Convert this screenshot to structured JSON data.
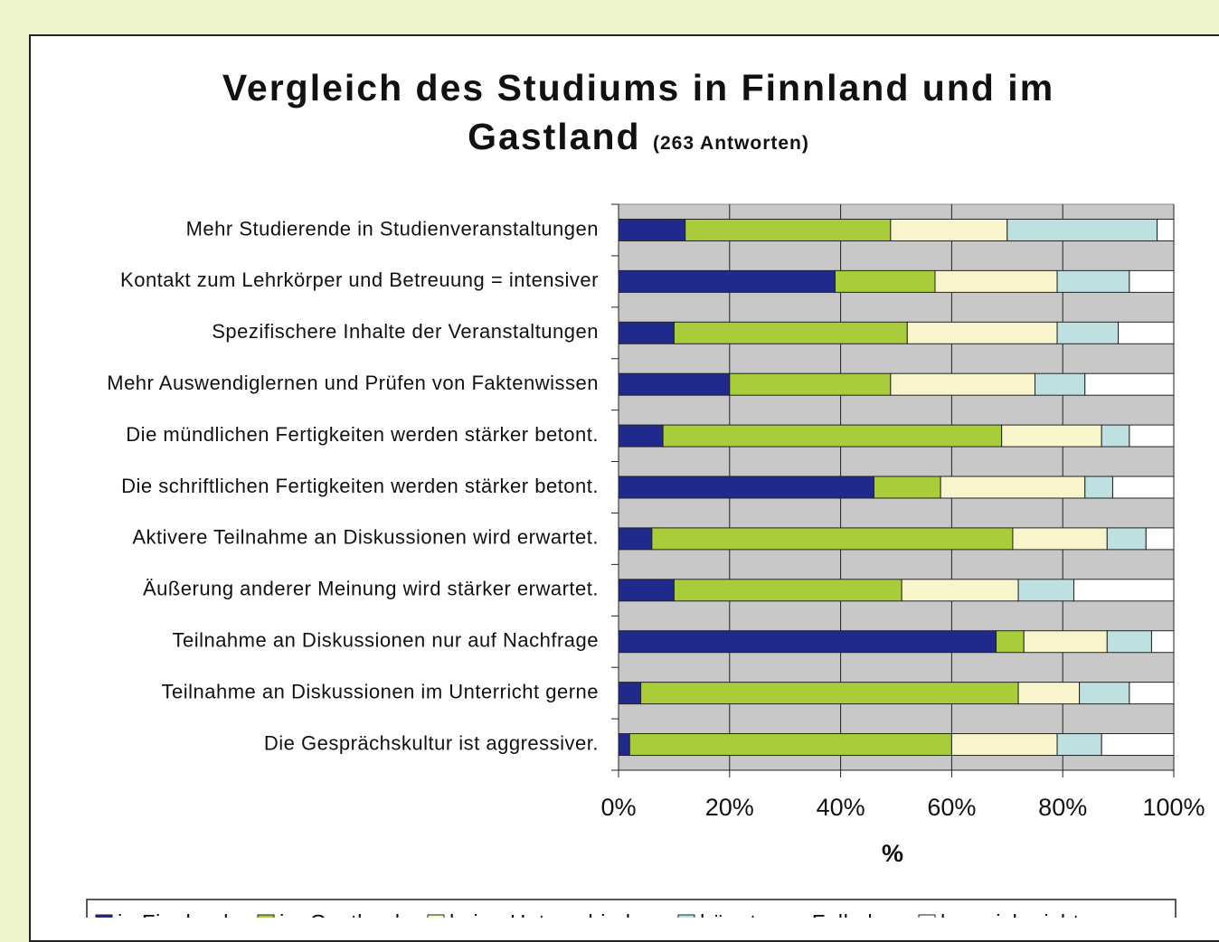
{
  "chart_data": {
    "type": "stacked-bar-horizontal",
    "title": "Vergleich des Studiums in Finnland und im Gastland",
    "subtitle": "(263 Antworten)",
    "x_label": "%",
    "categories": [
      "Mehr Studierende in Studienveranstaltungen",
      "Kontakt zum Lehrkörper und Betreuung = intensiver",
      "Spezifischere Inhalte der Veranstaltungen",
      "Mehr Auswendiglernen und Prüfen von Faktenwissen",
      "Die mündlichen Fertigkeiten werden stärker betont.",
      "Die schriftlichen Fertigkeiten werden stärker betont.",
      "Aktivere Teilnahme an Diskussionen wird erwartet.",
      "Äußerung anderer Meinung wird stärker erwartet.",
      "Teilnahme an Diskussionen nur auf Nachfrage",
      "Teilnahme an Diskussionen im Unterricht gerne",
      "Die Gesprächskultur ist aggressiver."
    ],
    "series": [
      {
        "name": "in Finnland",
        "color": "#1f2a8c",
        "values": [
          12,
          39,
          10,
          20,
          8,
          46,
          6,
          10,
          68,
          4,
          2
        ]
      },
      {
        "name": "im Gastland",
        "color": "#a8cc3a",
        "values": [
          37,
          18,
          42,
          29,
          61,
          12,
          65,
          41,
          5,
          68,
          58
        ]
      },
      {
        "name": "keine Unterschiede",
        "color": "#f8f4cc",
        "values": [
          21,
          22,
          27,
          26,
          18,
          26,
          17,
          21,
          15,
          11,
          19
        ]
      },
      {
        "name": "hängt vom Fall ab",
        "color": "#bfe0e0",
        "values": [
          27,
          13,
          11,
          9,
          5,
          5,
          7,
          10,
          8,
          9,
          8
        ]
      },
      {
        "name": "kann ich nicht sagen",
        "color": "#ffffff",
        "values": [
          3,
          8,
          10,
          16,
          8,
          11,
          5,
          18,
          4,
          8,
          13
        ]
      }
    ],
    "xlim": [
      0,
      100
    ],
    "xticks": [
      {
        "value": 0,
        "label": "0%"
      },
      {
        "value": 20,
        "label": "20%"
      },
      {
        "value": 40,
        "label": "40%"
      },
      {
        "value": 60,
        "label": "60%"
      },
      {
        "value": 80,
        "label": "80%"
      },
      {
        "value": 100,
        "label": "100%"
      }
    ],
    "grid": true,
    "legend": "bottom"
  }
}
